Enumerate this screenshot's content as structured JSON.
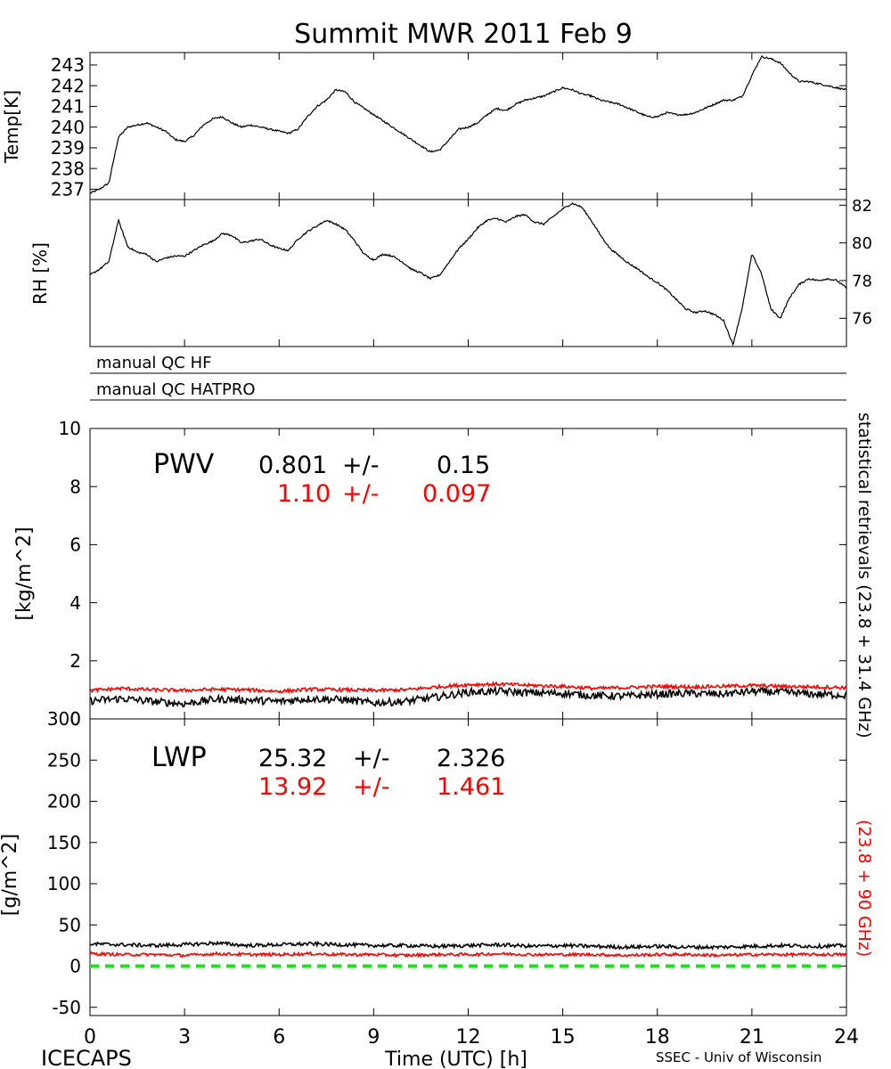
{
  "title": "Summit MWR 2011 Feb  9",
  "footer": {
    "left": "ICECAPS",
    "center": "Time (UTC) [h]",
    "right": "SSEC - Univ of Wisconsin"
  },
  "colors": {
    "primary": "#000000",
    "secondary": "#ff0000",
    "zero_line": "#22dd22"
  },
  "side_labels": {
    "black": "statistical retrievals (23.8 + 31.4 GHz)",
    "red": "(23.8 + 90 GHz)"
  },
  "chart_data": [
    {
      "type": "line",
      "name": "temp",
      "ylabel": "Temp[K]",
      "xlim": [
        0,
        24
      ],
      "ylim": [
        236.5,
        243.6
      ],
      "yticks": [
        237,
        238,
        239,
        240,
        241,
        242,
        243
      ],
      "x": [
        0,
        0.3,
        0.6,
        0.9,
        1.2,
        1.5,
        1.8,
        2.1,
        2.4,
        2.7,
        3.0,
        3.3,
        3.6,
        3.9,
        4.2,
        4.5,
        4.8,
        5.1,
        5.4,
        5.7,
        6.0,
        6.3,
        6.6,
        6.9,
        7.2,
        7.5,
        7.8,
        8.1,
        8.4,
        8.7,
        9.0,
        9.3,
        9.6,
        9.9,
        10.2,
        10.5,
        10.8,
        11.1,
        11.4,
        11.7,
        12.0,
        12.3,
        12.6,
        12.9,
        13.2,
        13.5,
        13.8,
        14.1,
        14.4,
        14.7,
        15.0,
        15.3,
        15.6,
        15.9,
        16.2,
        16.5,
        16.8,
        17.1,
        17.4,
        17.7,
        18.0,
        18.3,
        18.6,
        18.9,
        19.2,
        19.5,
        19.8,
        20.1,
        20.4,
        20.7,
        21.0,
        21.3,
        21.6,
        21.9,
        22.2,
        22.5,
        22.8,
        23.1,
        23.4,
        23.7,
        24.0
      ],
      "y": [
        236.8,
        237.0,
        237.3,
        239.5,
        240.0,
        240.1,
        240.2,
        240.0,
        239.8,
        239.4,
        239.3,
        239.6,
        240.1,
        240.4,
        240.5,
        240.2,
        240.0,
        240.1,
        240.0,
        239.9,
        239.8,
        239.7,
        239.9,
        240.5,
        241.0,
        241.3,
        241.8,
        241.7,
        241.2,
        240.9,
        240.6,
        240.3,
        240.0,
        239.7,
        239.4,
        239.1,
        238.8,
        238.9,
        239.4,
        239.9,
        240.0,
        240.2,
        240.6,
        240.9,
        240.8,
        241.1,
        241.3,
        241.4,
        241.5,
        241.7,
        241.9,
        241.8,
        241.6,
        241.5,
        241.3,
        241.2,
        241.1,
        240.9,
        240.7,
        240.5,
        240.5,
        240.7,
        240.6,
        240.6,
        240.7,
        240.9,
        241.1,
        241.3,
        241.3,
        241.5,
        242.5,
        243.4,
        243.3,
        243.1,
        242.6,
        242.2,
        242.2,
        242.1,
        242.0,
        241.9,
        241.8
      ]
    },
    {
      "type": "line",
      "name": "rh",
      "ylabel": "RH [%]",
      "xlim": [
        0,
        24
      ],
      "ylim": [
        74.5,
        82.3
      ],
      "yticks": [
        76,
        78,
        80,
        82
      ],
      "x": [
        0,
        0.3,
        0.6,
        0.9,
        1.2,
        1.5,
        1.8,
        2.1,
        2.4,
        2.7,
        3.0,
        3.3,
        3.6,
        3.9,
        4.2,
        4.5,
        4.8,
        5.1,
        5.4,
        5.7,
        6.0,
        6.3,
        6.6,
        6.9,
        7.2,
        7.5,
        7.8,
        8.1,
        8.4,
        8.7,
        9.0,
        9.3,
        9.6,
        9.9,
        10.2,
        10.5,
        10.8,
        11.1,
        11.4,
        11.7,
        12.0,
        12.3,
        12.6,
        12.9,
        13.2,
        13.5,
        13.8,
        14.1,
        14.4,
        14.7,
        15.0,
        15.3,
        15.6,
        15.9,
        16.2,
        16.5,
        16.8,
        17.1,
        17.4,
        17.7,
        18.0,
        18.3,
        18.6,
        18.9,
        19.2,
        19.5,
        19.8,
        20.1,
        20.4,
        20.7,
        21.0,
        21.3,
        21.6,
        21.9,
        22.2,
        22.5,
        22.8,
        23.1,
        23.4,
        23.7,
        24.0
      ],
      "y": [
        78.3,
        78.6,
        79.0,
        81.2,
        79.8,
        79.5,
        79.4,
        79.0,
        79.2,
        79.3,
        79.3,
        79.6,
        79.9,
        80.1,
        80.5,
        80.4,
        80.0,
        80.1,
        80.2,
        79.9,
        79.7,
        79.6,
        80.2,
        80.6,
        80.9,
        81.2,
        81.0,
        80.7,
        80.1,
        79.4,
        79.1,
        79.4,
        79.3,
        79.0,
        78.6,
        78.4,
        78.1,
        78.3,
        79.0,
        79.7,
        80.2,
        80.8,
        81.2,
        81.3,
        81.1,
        81.4,
        81.5,
        81.1,
        81.0,
        81.4,
        81.8,
        82.1,
        81.9,
        81.2,
        80.4,
        79.7,
        79.3,
        78.9,
        78.6,
        78.2,
        77.9,
        77.5,
        77.0,
        76.5,
        76.3,
        76.4,
        76.2,
        75.9,
        74.6,
        76.6,
        79.4,
        78.4,
        76.5,
        76.0,
        77.1,
        77.8,
        78.1,
        78.0,
        78.1,
        78.0,
        77.6
      ]
    },
    {
      "type": "line",
      "name": "pwv",
      "ylabel": "[kg/m^2]",
      "xlim": [
        0,
        24
      ],
      "ylim": [
        0,
        10
      ],
      "yticks": [
        0,
        2,
        4,
        6,
        8,
        10
      ],
      "annotation": {
        "label": "PWV",
        "black": {
          "mean": "0.801",
          "pm": "+/-",
          "sd": "0.15"
        },
        "red": {
          "mean": "1.10",
          "pm": "+/-",
          "sd": "0.097"
        }
      },
      "x": [
        0,
        1,
        2,
        3,
        4,
        5,
        6,
        7,
        8,
        9,
        10,
        11,
        12,
        13,
        14,
        15,
        16,
        17,
        18,
        19,
        20,
        21,
        22,
        23,
        24
      ],
      "series": [
        {
          "color": "#000000",
          "values": [
            0.62,
            0.7,
            0.6,
            0.52,
            0.68,
            0.65,
            0.6,
            0.7,
            0.66,
            0.55,
            0.6,
            0.75,
            0.92,
            0.95,
            0.9,
            0.88,
            0.8,
            0.78,
            0.85,
            0.88,
            0.85,
            0.95,
            0.92,
            0.85,
            0.82
          ],
          "noise": 0.13
        },
        {
          "color": "#ff0000",
          "values": [
            0.98,
            1.05,
            1.0,
            0.98,
            1.02,
            1.0,
            0.95,
            1.02,
            1.0,
            0.98,
            1.0,
            1.1,
            1.18,
            1.2,
            1.15,
            1.12,
            1.05,
            1.08,
            1.12,
            1.1,
            1.12,
            1.15,
            1.12,
            1.1,
            1.08
          ],
          "noise": 0.06
        }
      ]
    },
    {
      "type": "line",
      "name": "lwp",
      "ylabel": "[g/m^2]",
      "xlim": [
        0,
        24
      ],
      "ylim": [
        -60,
        300
      ],
      "yticks": [
        -50,
        0,
        50,
        100,
        150,
        200,
        250,
        300
      ],
      "annotation": {
        "label": "LWP",
        "black": {
          "mean": "25.32",
          "pm": "+/-",
          "sd": "2.326"
        },
        "red": {
          "mean": "13.92",
          "pm": "+/-",
          "sd": "1.461"
        }
      },
      "x": [
        0,
        1,
        2,
        3,
        4,
        5,
        6,
        7,
        8,
        9,
        10,
        11,
        12,
        13,
        14,
        15,
        16,
        17,
        18,
        19,
        20,
        21,
        22,
        23,
        24
      ],
      "series": [
        {
          "color": "#000000",
          "values": [
            27,
            26,
            25,
            26,
            28,
            25,
            26,
            27,
            26,
            25,
            25,
            24,
            25,
            26,
            24,
            25,
            24,
            23,
            24,
            23,
            23,
            24,
            25,
            24,
            25
          ],
          "noise": 2.2
        },
        {
          "color": "#ff0000",
          "values": [
            15,
            14,
            14,
            13,
            15,
            14,
            14,
            15,
            14,
            14,
            13,
            14,
            14,
            15,
            14,
            14,
            14,
            13,
            14,
            14,
            13,
            14,
            14,
            14,
            14
          ],
          "noise": 1.8
        }
      ],
      "zero_line": 0
    }
  ],
  "qc": {
    "hf_label": "manual QC HF",
    "hatpro_label": "manual QC HATPRO"
  },
  "x_axis": {
    "ticks": [
      0,
      3,
      6,
      9,
      12,
      15,
      18,
      21,
      24
    ]
  }
}
